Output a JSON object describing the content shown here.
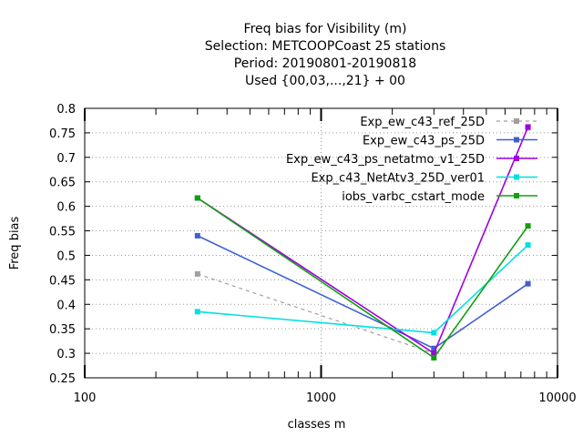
{
  "chart_data": {
    "type": "line",
    "title_lines": [
      "Freq bias  for Visibility (m)",
      "Selection: METCOOPCoast     25 stations",
      "Period: 20190801-20190818",
      "Used {00,03,...,21} + 00"
    ],
    "xlabel": "classes m",
    "ylabel": "Freq bias",
    "x_scale": "log",
    "xlim": [
      100,
      10000
    ],
    "ylim": [
      0.25,
      0.8
    ],
    "x_ticks": [
      100,
      1000,
      10000
    ],
    "x_tick_labels": [
      "100",
      "1000",
      "10000"
    ],
    "y_ticks": [
      0.25,
      0.3,
      0.35,
      0.4,
      0.45,
      0.5,
      0.55,
      0.6,
      0.65,
      0.7,
      0.75,
      0.8
    ],
    "y_tick_labels": [
      "0.25",
      "0.3",
      "0.35",
      "0.4",
      "0.45",
      "0.5",
      "0.55",
      "0.6",
      "0.65",
      "0.7",
      "0.75",
      "0.8"
    ],
    "grid": true,
    "legend_position": "top-right",
    "x": [
      300,
      3000,
      7500
    ],
    "series": [
      {
        "name": "Exp_ew_c43_ref_25D",
        "values": [
          0.462,
          0.3,
          0.76
        ],
        "color": "#a0a0a0",
        "dashed": true
      },
      {
        "name": "Exp_ew_c43_ps_25D",
        "values": [
          0.54,
          0.31,
          0.442
        ],
        "color": "#4060d0",
        "dashed": false
      },
      {
        "name": "Exp_ew_c43_ps_netatmo_v1_25D",
        "values": [
          0.617,
          0.3,
          0.762
        ],
        "color": "#a000e0",
        "dashed": false
      },
      {
        "name": "Exp_c43_NetAtv3_25D_ver01",
        "values": [
          0.385,
          0.342,
          0.521
        ],
        "color": "#00e0e0",
        "dashed": false
      },
      {
        "name": "iobs_varbc_cstart_mode",
        "values": [
          0.617,
          0.291,
          0.56
        ],
        "color": "#10a010",
        "dashed": false
      }
    ]
  }
}
